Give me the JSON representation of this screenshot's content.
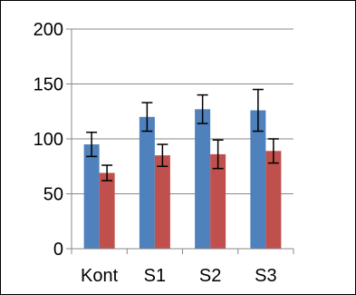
{
  "chart_data": {
    "type": "bar",
    "categories": [
      "Kont",
      "S1",
      "S2",
      "S3"
    ],
    "series": [
      {
        "values": [
          95,
          120,
          127,
          126
        ],
        "errors": [
          11,
          13,
          13,
          19
        ],
        "color": "#4f81bd"
      },
      {
        "values": [
          69,
          85,
          86,
          89
        ],
        "errors": [
          7,
          10,
          13,
          11
        ],
        "color": "#c0504d"
      }
    ],
    "ylim": [
      0,
      200
    ],
    "yticks": [
      "0",
      "50",
      "100",
      "150",
      "200"
    ],
    "grid": true,
    "title": "",
    "xlabel": "",
    "ylabel": ""
  }
}
